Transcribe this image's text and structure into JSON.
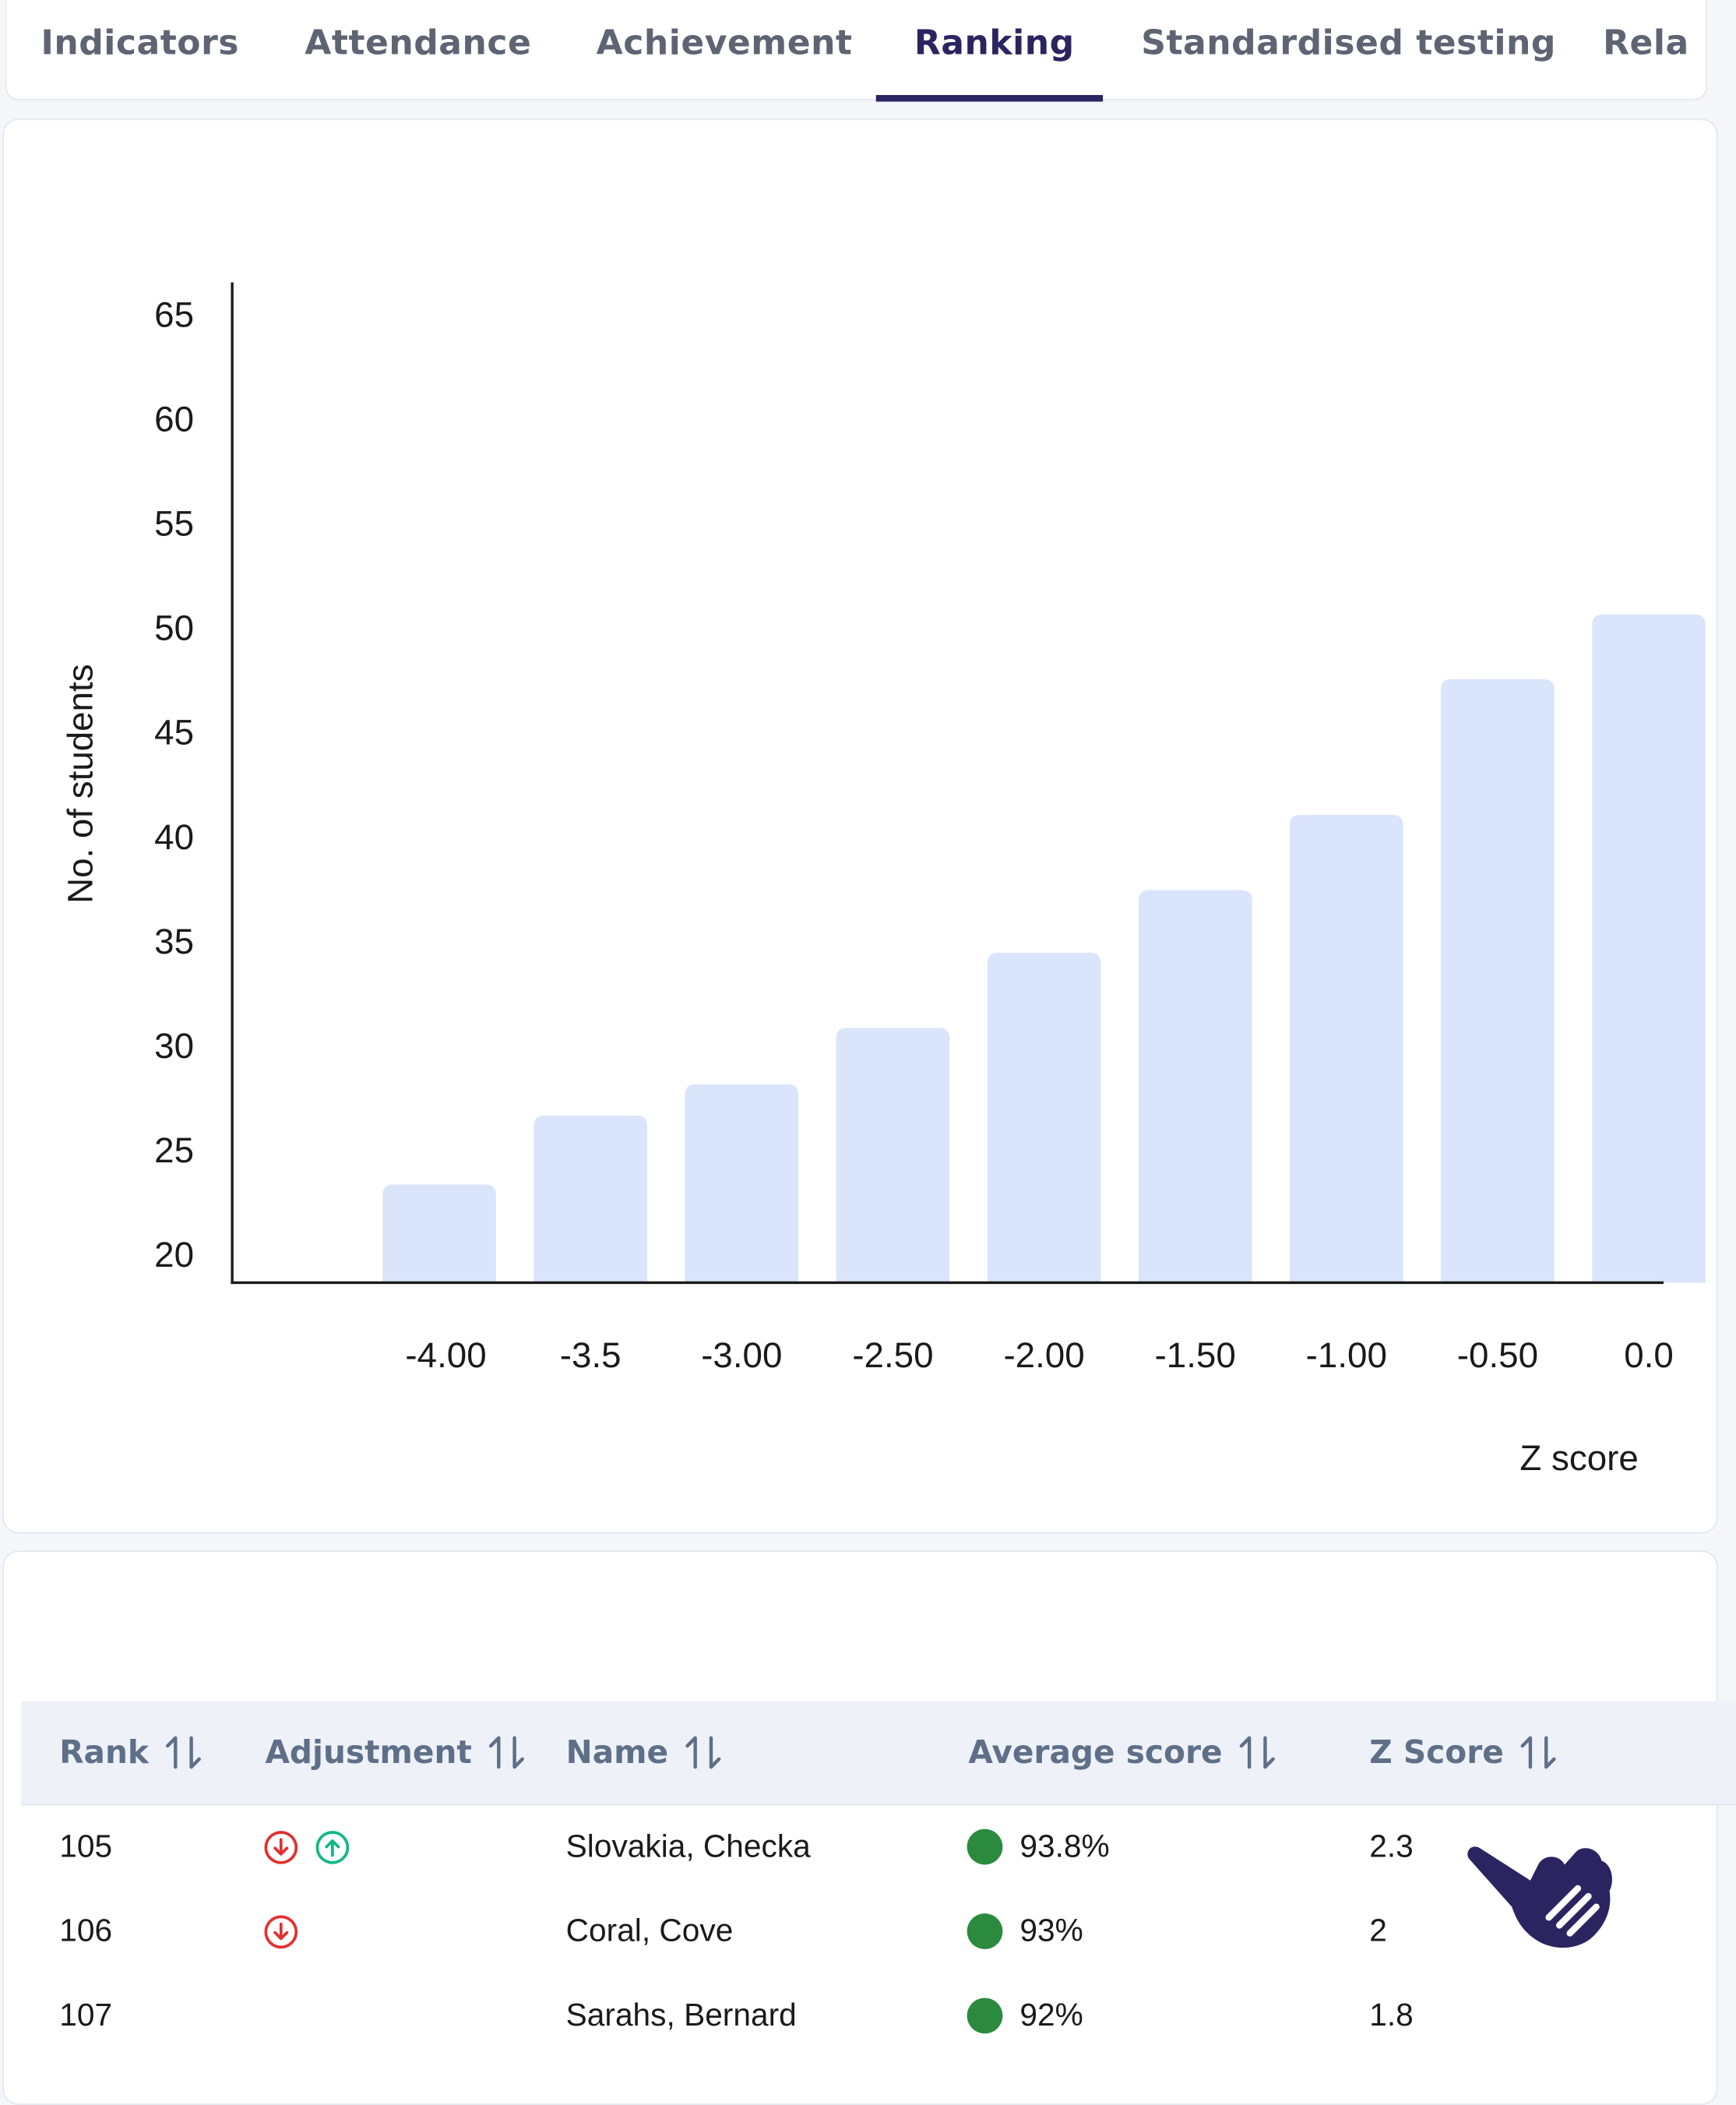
{
  "tabs": [
    "Indicators",
    "Attendance",
    "Achievement",
    "Ranking",
    "Standardised testing",
    "Rela"
  ],
  "active_tab": "Ranking",
  "colors": {
    "accent": "#2a2460",
    "bar": "#dae5fb",
    "down": "#e03131",
    "up": "#12b886",
    "good": "#2b8a3e"
  },
  "chart_data": {
    "type": "bar",
    "xlabel": "Z score",
    "ylabel": "No. of students",
    "categories": [
      "-4.00",
      "-3.5",
      "-3.00",
      "-2.50",
      "-2.00",
      "-1.50",
      "-1.00",
      "-0.50",
      "0.0"
    ],
    "values": [
      23.3,
      26.6,
      28.1,
      30.8,
      34.4,
      37.4,
      41.0,
      47.5,
      50.6
    ],
    "y_ticks": [
      "20",
      "25",
      "30",
      "35",
      "40",
      "45",
      "50",
      "55",
      "60",
      "65"
    ],
    "ylim": [
      18.6,
      66.5
    ],
    "grid": false
  },
  "table": {
    "headers": [
      "Rank",
      "Adjustment",
      "Name",
      "Average score",
      "Z Score"
    ],
    "rows": [
      {
        "rank": "105",
        "adjustment": [
          "down-arrow-icon",
          "up-arrow-icon"
        ],
        "name": "Slovakia, Checka",
        "average": "93.8%",
        "z": "2.3"
      },
      {
        "rank": "106",
        "adjustment": [
          "down-arrow-icon"
        ],
        "name": "Coral, Cove",
        "average": "93%",
        "z": "2"
      },
      {
        "rank": "107",
        "adjustment": [],
        "name": "Sarahs, Bernard",
        "average": "92%",
        "z": "1.8"
      }
    ]
  }
}
